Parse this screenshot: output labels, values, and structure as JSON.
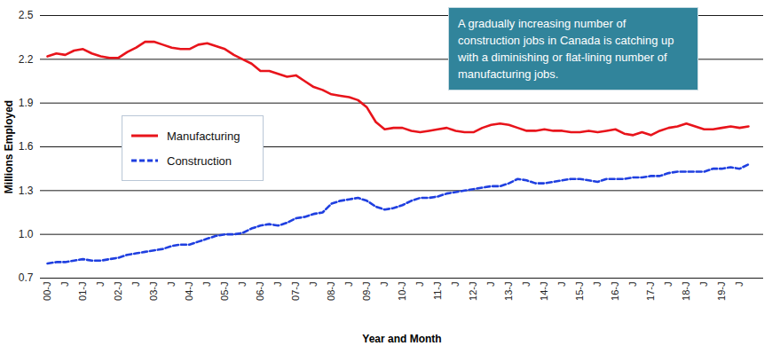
{
  "chart_data": {
    "type": "line",
    "annotation": "A gradually increasing number of construction jobs in Canada is catching up with a diminishing or flat-lining number of manufacturing jobs.",
    "x_label": "Year and Month",
    "y_label": "Millions Employed",
    "categories": [
      "00-J",
      null,
      "J",
      null,
      "01-J",
      null,
      "J",
      null,
      "02-J",
      null,
      "J",
      null,
      "03-J",
      null,
      "J",
      null,
      "04-J",
      null,
      "J",
      null,
      "05-J",
      null,
      "J",
      null,
      "06-J",
      null,
      "J",
      null,
      "07-J",
      null,
      "J",
      null,
      "08-J",
      null,
      "J",
      null,
      "09-J",
      null,
      "J",
      null,
      "10-J",
      null,
      "J",
      null,
      "11-J",
      null,
      "J",
      null,
      "12-J",
      null,
      "J",
      null,
      "13-J",
      null,
      "J",
      null,
      "14-J",
      null,
      "J",
      null,
      "15-J",
      null,
      "J",
      null,
      "16-J",
      null,
      "J",
      null,
      "17-J",
      null,
      "J",
      null,
      "18-J",
      null,
      "J",
      null,
      "19-J",
      null,
      "J",
      null
    ],
    "series": [
      {
        "name": "Manufacturing",
        "color": "#e8141b",
        "line_style": "solid",
        "values": [
          2.22,
          2.24,
          2.23,
          2.26,
          2.27,
          2.24,
          2.22,
          2.21,
          2.21,
          2.25,
          2.28,
          2.32,
          2.32,
          2.3,
          2.28,
          2.27,
          2.27,
          2.3,
          2.31,
          2.29,
          2.27,
          2.23,
          2.2,
          2.17,
          2.12,
          2.12,
          2.1,
          2.08,
          2.09,
          2.05,
          2.01,
          1.99,
          1.96,
          1.95,
          1.94,
          1.92,
          1.87,
          1.77,
          1.72,
          1.73,
          1.73,
          1.71,
          1.7,
          1.71,
          1.72,
          1.73,
          1.71,
          1.7,
          1.7,
          1.73,
          1.75,
          1.76,
          1.75,
          1.73,
          1.71,
          1.71,
          1.72,
          1.71,
          1.71,
          1.7,
          1.7,
          1.71,
          1.7,
          1.71,
          1.72,
          1.69,
          1.68,
          1.7,
          1.68,
          1.71,
          1.73,
          1.74,
          1.76,
          1.74,
          1.72,
          1.72,
          1.73,
          1.74,
          1.73,
          1.74
        ]
      },
      {
        "name": "Construction",
        "color": "#1f3fe0",
        "line_style": "dashed",
        "values": [
          0.8,
          0.81,
          0.81,
          0.82,
          0.83,
          0.82,
          0.82,
          0.83,
          0.84,
          0.86,
          0.87,
          0.88,
          0.89,
          0.9,
          0.92,
          0.93,
          0.93,
          0.95,
          0.97,
          0.99,
          1.0,
          1.0,
          1.01,
          1.04,
          1.06,
          1.07,
          1.06,
          1.08,
          1.11,
          1.12,
          1.14,
          1.15,
          1.21,
          1.23,
          1.24,
          1.25,
          1.23,
          1.19,
          1.17,
          1.18,
          1.2,
          1.23,
          1.25,
          1.25,
          1.26,
          1.28,
          1.29,
          1.3,
          1.31,
          1.32,
          1.33,
          1.33,
          1.35,
          1.38,
          1.37,
          1.35,
          1.35,
          1.36,
          1.37,
          1.38,
          1.38,
          1.37,
          1.36,
          1.38,
          1.38,
          1.38,
          1.39,
          1.39,
          1.4,
          1.4,
          1.42,
          1.43,
          1.43,
          1.43,
          1.43,
          1.45,
          1.45,
          1.46,
          1.45,
          1.48
        ]
      }
    ],
    "ylim": [
      0.7,
      2.5
    ],
    "yticks": [
      0.7,
      {
        "value": 1,
        "label": "1.0"
      },
      1.3,
      1.6,
      1.9,
      2.2,
      2.5
    ],
    "grid": true,
    "legend": "left"
  }
}
